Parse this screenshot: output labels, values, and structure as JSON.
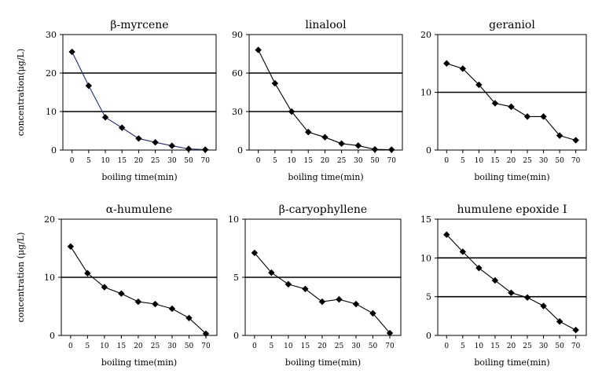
{
  "chart_data": [
    {
      "type": "line",
      "title": "β-myrcene",
      "xlabel": "boiling time(min)",
      "ylabel": "concentration(μg/L)",
      "categories": [
        "0",
        "5",
        "10",
        "15",
        "20",
        "25",
        "30",
        "50",
        "70"
      ],
      "values": [
        25.5,
        16.7,
        8.5,
        5.8,
        3.0,
        2.0,
        1.1,
        0.3,
        0.1
      ],
      "ylim": [
        0,
        30
      ],
      "yticks": [
        0,
        10,
        20,
        30
      ],
      "line_color": "#1f2a7a"
    },
    {
      "type": "line",
      "title": "linalool",
      "xlabel": "boiling time(min)",
      "ylabel": "",
      "categories": [
        "0",
        "5",
        "10",
        "15",
        "20",
        "25",
        "30",
        "50",
        "70"
      ],
      "values": [
        78,
        52,
        30,
        14,
        10,
        5,
        3.5,
        0.5,
        0.3
      ],
      "ylim": [
        0,
        90
      ],
      "yticks": [
        0,
        30,
        60,
        90
      ],
      "line_color": "#000000"
    },
    {
      "type": "line",
      "title": "geraniol",
      "xlabel": "boiling time(min)",
      "ylabel": "",
      "categories": [
        "0",
        "5",
        "10",
        "15",
        "20",
        "25",
        "30",
        "50",
        "70"
      ],
      "values": [
        15.0,
        14.1,
        11.3,
        8.1,
        7.5,
        5.8,
        5.8,
        2.5,
        1.7
      ],
      "ylim": [
        0,
        20
      ],
      "yticks": [
        0,
        10,
        20
      ],
      "line_color": "#000000"
    },
    {
      "type": "line",
      "title": "α-humulene",
      "xlabel": "boiling time(min)",
      "ylabel": "concentration (μg/L)",
      "categories": [
        "0",
        "5",
        "10",
        "15",
        "20",
        "25",
        "30",
        "50",
        "70"
      ],
      "values": [
        15.3,
        10.7,
        8.3,
        7.2,
        5.8,
        5.4,
        4.6,
        3.0,
        0.3
      ],
      "ylim": [
        0,
        20
      ],
      "yticks": [
        0,
        10,
        20
      ],
      "line_color": "#000000"
    },
    {
      "type": "line",
      "title": "β-caryophyllene",
      "xlabel": "boiling time(min)",
      "ylabel": "",
      "categories": [
        "0",
        "5",
        "10",
        "15",
        "20",
        "25",
        "30",
        "50",
        "70"
      ],
      "values": [
        7.1,
        5.4,
        4.4,
        4.0,
        2.9,
        3.1,
        2.7,
        1.9,
        0.2
      ],
      "ylim": [
        0,
        10
      ],
      "yticks": [
        0,
        5,
        10
      ],
      "line_color": "#000000"
    },
    {
      "type": "line",
      "title": "humulene epoxide I",
      "xlabel": "boiling time(min)",
      "ylabel": "",
      "categories": [
        "0",
        "5",
        "10",
        "15",
        "20",
        "25",
        "30",
        "50",
        "70"
      ],
      "values": [
        13.0,
        10.8,
        8.7,
        7.1,
        5.5,
        4.9,
        3.8,
        1.8,
        0.7
      ],
      "ylim": [
        0,
        15
      ],
      "yticks": [
        0,
        5,
        10,
        15
      ],
      "line_color": "#000000"
    }
  ]
}
